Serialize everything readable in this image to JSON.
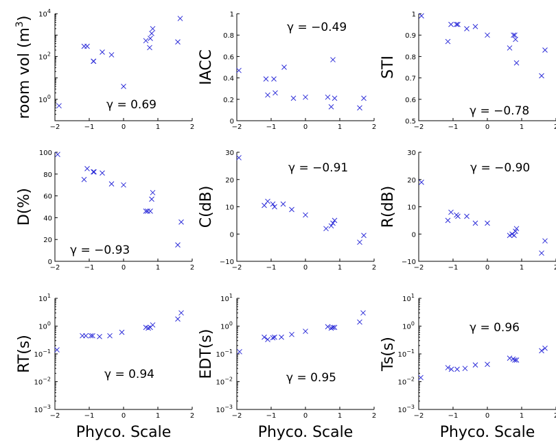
{
  "figure": {
    "x_axis_label": "Phyco. Scale"
  },
  "colors": {
    "marker": "#2b2bd8",
    "axis": "#000000"
  },
  "chart_data": [
    {
      "type": "scatter",
      "ylabel": "room vol (m^3)",
      "ylabel_plain": "room vol (m",
      "ylabel_sup": "3",
      "ylabel_close": ")",
      "annotation": "γ = 0.69",
      "yscale": "log",
      "xlim": [
        -2,
        2
      ],
      "ylim_exp": [
        -1,
        4
      ],
      "xticks": [
        "-2",
        "-1",
        "0",
        "1",
        "2"
      ],
      "yticks_exp": [
        "-1",
        "0",
        "1",
        "2",
        "3",
        "4"
      ],
      "yticklabels": [
        "10^0",
        "10^2",
        "10^4"
      ],
      "points": [
        [
          -1.88,
          0.5
        ],
        [
          -1.15,
          300
        ],
        [
          -1.06,
          300
        ],
        [
          -0.88,
          60
        ],
        [
          -0.87,
          60
        ],
        [
          -0.62,
          160
        ],
        [
          -0.35,
          120
        ],
        [
          0.0,
          4
        ],
        [
          0.65,
          550
        ],
        [
          0.76,
          260
        ],
        [
          0.78,
          700
        ],
        [
          0.82,
          1200
        ],
        [
          0.85,
          2000
        ],
        [
          1.58,
          480
        ],
        [
          1.65,
          6000
        ]
      ]
    },
    {
      "type": "scatter",
      "ylabel": "IACC",
      "annotation": "γ = −0.49",
      "yscale": "linear",
      "xlim": [
        -2,
        2
      ],
      "ylim": [
        0,
        1
      ],
      "xticks": [
        "-2",
        "-1",
        "0",
        "1",
        "2"
      ],
      "yticks": [
        "0",
        "0.2",
        "0.4",
        "0.6",
        "0.8",
        "1"
      ],
      "points": [
        [
          -1.94,
          0.47
        ],
        [
          -1.15,
          0.39
        ],
        [
          -1.1,
          0.24
        ],
        [
          -0.92,
          0.39
        ],
        [
          -0.88,
          0.26
        ],
        [
          -0.62,
          0.5
        ],
        [
          -0.35,
          0.21
        ],
        [
          0.0,
          0.22
        ],
        [
          0.65,
          0.22
        ],
        [
          0.75,
          0.13
        ],
        [
          0.8,
          0.57
        ],
        [
          0.85,
          0.21
        ],
        [
          1.58,
          0.12
        ],
        [
          1.7,
          0.21
        ]
      ]
    },
    {
      "type": "scatter",
      "ylabel": "STI",
      "annotation": "γ = −0.78",
      "yscale": "linear",
      "xlim": [
        -2,
        2
      ],
      "ylim": [
        0.5,
        1
      ],
      "xticks": [
        "-2",
        "-1",
        "0",
        "1",
        "2"
      ],
      "yticks": [
        "0.5",
        "0.6",
        "0.7",
        "0.8",
        "0.9",
        "1"
      ],
      "points": [
        [
          -1.92,
          0.99
        ],
        [
          -1.15,
          0.87
        ],
        [
          -1.06,
          0.95
        ],
        [
          -0.9,
          0.95
        ],
        [
          -0.86,
          0.95
        ],
        [
          -0.6,
          0.93
        ],
        [
          -0.35,
          0.94
        ],
        [
          0.0,
          0.9
        ],
        [
          0.65,
          0.84
        ],
        [
          0.76,
          0.9
        ],
        [
          0.8,
          0.9
        ],
        [
          0.82,
          0.88
        ],
        [
          0.85,
          0.77
        ],
        [
          1.58,
          0.71
        ],
        [
          1.68,
          0.83
        ]
      ]
    },
    {
      "type": "scatter",
      "ylabel": "D(%)",
      "annotation": "γ = −0.93",
      "yscale": "linear",
      "xlim": [
        -2,
        2
      ],
      "ylim": [
        0,
        100
      ],
      "xticks": [
        "-2",
        "-1",
        "0",
        "1",
        "2"
      ],
      "yticks": [
        "0",
        "20",
        "40",
        "60",
        "80",
        "100"
      ],
      "points": [
        [
          -1.92,
          98
        ],
        [
          -1.15,
          75
        ],
        [
          -1.06,
          85
        ],
        [
          -0.88,
          82
        ],
        [
          -0.86,
          82
        ],
        [
          -0.62,
          81
        ],
        [
          -0.35,
          71
        ],
        [
          0.0,
          70
        ],
        [
          0.65,
          46
        ],
        [
          0.7,
          46
        ],
        [
          0.78,
          46
        ],
        [
          0.82,
          57
        ],
        [
          0.85,
          63
        ],
        [
          1.58,
          15
        ],
        [
          1.68,
          36
        ]
      ]
    },
    {
      "type": "scatter",
      "ylabel": "C(dB)",
      "annotation": "γ = −0.91",
      "yscale": "linear",
      "xlim": [
        -2,
        2
      ],
      "ylim": [
        -10,
        30
      ],
      "xticks": [
        "-2",
        "-1",
        "0",
        "1",
        "2"
      ],
      "yticks": [
        "-10",
        "0",
        "10",
        "20",
        "30"
      ],
      "points": [
        [
          -1.94,
          28
        ],
        [
          -1.2,
          10.5
        ],
        [
          -1.1,
          12
        ],
        [
          -0.95,
          11
        ],
        [
          -0.9,
          10
        ],
        [
          -0.65,
          11
        ],
        [
          -0.4,
          9
        ],
        [
          0.0,
          7
        ],
        [
          0.6,
          2
        ],
        [
          0.75,
          3
        ],
        [
          0.8,
          4
        ],
        [
          0.85,
          5
        ],
        [
          1.58,
          -3
        ],
        [
          1.7,
          -0.5
        ]
      ]
    },
    {
      "type": "scatter",
      "ylabel": "R(dB)",
      "annotation": "γ = −0.90",
      "yscale": "linear",
      "xlim": [
        -2,
        2
      ],
      "ylim": [
        -10,
        30
      ],
      "xticks": [
        "-2",
        "-1",
        "0",
        "1",
        "2"
      ],
      "yticks": [
        "-10",
        "0",
        "10",
        "20",
        "30"
      ],
      "points": [
        [
          -1.92,
          19
        ],
        [
          -1.15,
          5
        ],
        [
          -1.06,
          8
        ],
        [
          -0.9,
          7
        ],
        [
          -0.86,
          6.5
        ],
        [
          -0.6,
          6.5
        ],
        [
          -0.35,
          4
        ],
        [
          0.0,
          4
        ],
        [
          0.65,
          -0.5
        ],
        [
          0.72,
          0
        ],
        [
          0.78,
          -0.5
        ],
        [
          0.82,
          1
        ],
        [
          0.85,
          2
        ],
        [
          1.58,
          -7
        ],
        [
          1.68,
          -2.5
        ]
      ]
    },
    {
      "type": "scatter",
      "ylabel": "RT(s)",
      "annotation": "γ = 0.94",
      "yscale": "log",
      "xlim": [
        -2,
        2
      ],
      "ylim_exp": [
        -3,
        1
      ],
      "xticks": [
        "-2",
        "-1",
        "0",
        "1",
        "2"
      ],
      "yticks_exp": [
        "-3",
        "-2",
        "-1",
        "0",
        "1"
      ],
      "points": [
        [
          -1.94,
          0.14
        ],
        [
          -1.2,
          0.45
        ],
        [
          -1.1,
          0.45
        ],
        [
          -0.95,
          0.45
        ],
        [
          -0.9,
          0.45
        ],
        [
          -0.7,
          0.42
        ],
        [
          -0.4,
          0.45
        ],
        [
          -0.05,
          0.6
        ],
        [
          0.65,
          0.9
        ],
        [
          0.72,
          0.85
        ],
        [
          0.78,
          0.9
        ],
        [
          0.85,
          1.1
        ],
        [
          1.58,
          1.8
        ],
        [
          1.68,
          3
        ]
      ]
    },
    {
      "type": "scatter",
      "ylabel": "EDT(s)",
      "annotation": "γ = 0.95",
      "yscale": "log",
      "xlim": [
        -2,
        2
      ],
      "ylim_exp": [
        -3,
        1
      ],
      "xticks": [
        "-2",
        "-1",
        "0",
        "1",
        "2"
      ],
      "yticks_exp": [
        "-3",
        "-2",
        "-1",
        "0",
        "1"
      ],
      "points": [
        [
          -1.92,
          0.12
        ],
        [
          -1.2,
          0.4
        ],
        [
          -1.1,
          0.33
        ],
        [
          -0.95,
          0.38
        ],
        [
          -0.9,
          0.4
        ],
        [
          -0.7,
          0.4
        ],
        [
          -0.4,
          0.5
        ],
        [
          0.0,
          0.65
        ],
        [
          0.65,
          0.95
        ],
        [
          0.75,
          0.85
        ],
        [
          0.8,
          0.9
        ],
        [
          0.85,
          0.9
        ],
        [
          1.58,
          1.4
        ],
        [
          1.68,
          3
        ]
      ]
    },
    {
      "type": "scatter",
      "ylabel": "Ts(s)",
      "annotation": "γ = 0.96",
      "yscale": "log",
      "xlim": [
        -2,
        2
      ],
      "ylim_exp": [
        -3,
        1
      ],
      "xticks": [
        "-2",
        "-1",
        "0",
        "1",
        "2"
      ],
      "yticks_exp": [
        "-3",
        "-2",
        "-1",
        "0",
        "1"
      ],
      "points": [
        [
          -1.94,
          0.014
        ],
        [
          -1.15,
          0.032
        ],
        [
          -1.05,
          0.028
        ],
        [
          -0.88,
          0.028
        ],
        [
          -0.65,
          0.03
        ],
        [
          -0.35,
          0.04
        ],
        [
          0.0,
          0.042
        ],
        [
          0.65,
          0.07
        ],
        [
          0.75,
          0.065
        ],
        [
          0.8,
          0.06
        ],
        [
          0.85,
          0.06
        ],
        [
          1.58,
          0.13
        ],
        [
          1.68,
          0.16
        ]
      ]
    }
  ]
}
